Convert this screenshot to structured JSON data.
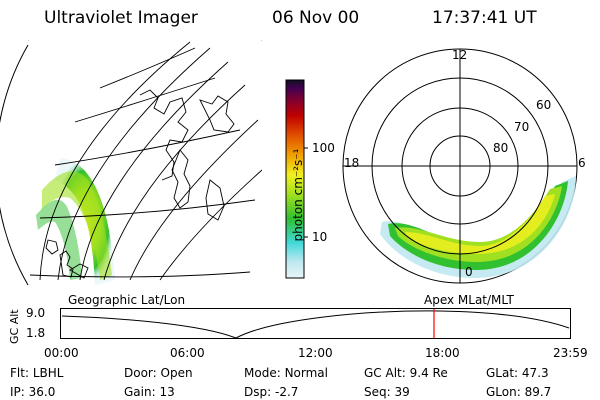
{
  "header": {
    "instrument": "Ultraviolet Imager",
    "date": "06 Nov 00",
    "time": "17:37:41 UT"
  },
  "colorbar": {
    "unit_label": "photon cm⁻²s⁻¹",
    "ticks": [
      "100",
      "10"
    ],
    "scale": "log",
    "colors": [
      "#e8f4f8",
      "#c0e8f0",
      "#40d8d8",
      "#30c030",
      "#a0e020",
      "#f0f020",
      "#f0a000",
      "#e05000",
      "#c00000",
      "#800030",
      "#400050",
      "#101020"
    ]
  },
  "geo_map": {
    "label": "Geographic Lat/Lon"
  },
  "polar_plot": {
    "label": "Apex MLat/MLT",
    "mlt_labels": [
      "12",
      "18",
      "6",
      "0"
    ],
    "lat_labels": [
      "60",
      "70",
      "80"
    ]
  },
  "timeline": {
    "axis_label": "GC Alt",
    "y_ticks": [
      "9.0",
      "1.8"
    ],
    "x_ticks": [
      "00:00",
      "06:00",
      "12:00",
      "18:00",
      "23:59"
    ],
    "current_time_marker": "17:37:41",
    "marker_color": "#ff0000"
  },
  "status": {
    "row1": [
      {
        "label": "Flt:",
        "value": "LBHL"
      },
      {
        "label": "Door:",
        "value": "Open"
      },
      {
        "label": "Mode:",
        "value": "Normal"
      },
      {
        "label": "GC Alt:",
        "value": "9.4 Re"
      },
      {
        "label": "GLat:",
        "value": "47.3"
      }
    ],
    "row2": [
      {
        "label": "IP:",
        "value": "36.0"
      },
      {
        "label": "Gain:",
        "value": "13"
      },
      {
        "label": "Dsp:",
        "value": "-2.7"
      },
      {
        "label": "Seq:",
        "value": "39"
      },
      {
        "label": "GLon:",
        "value": "89.7"
      }
    ]
  }
}
